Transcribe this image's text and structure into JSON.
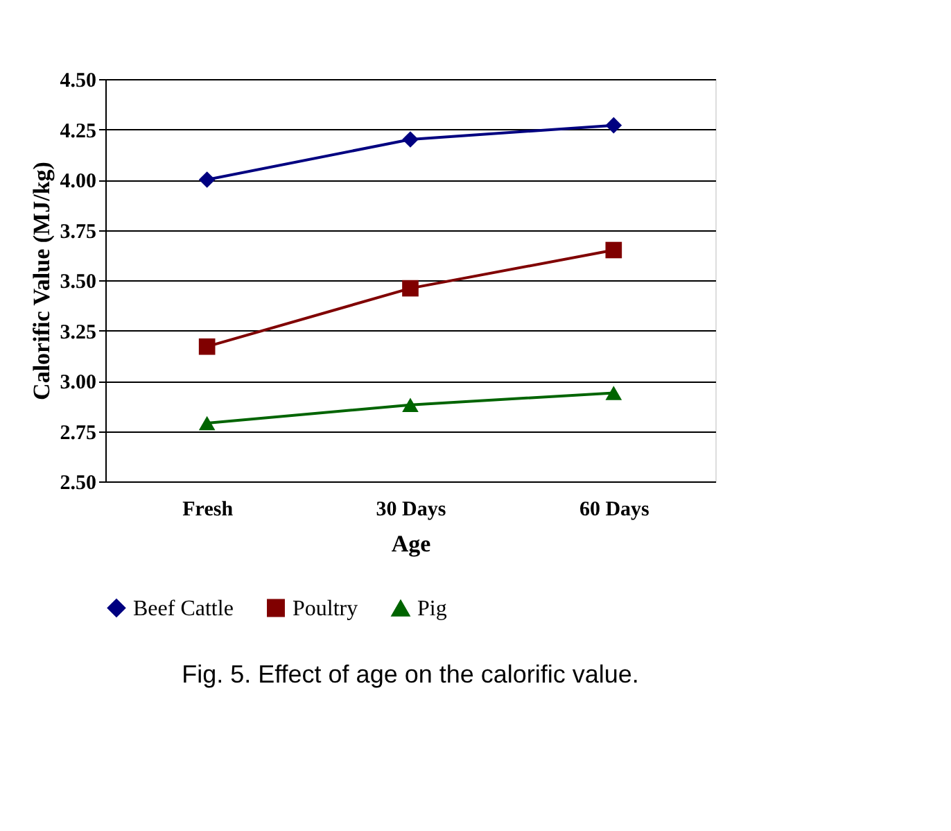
{
  "chart_data": {
    "type": "line",
    "xlabel": "Age",
    "ylabel": "Calorific Value (MJ/kg)",
    "categories": [
      "Fresh",
      "30 Days",
      "60 Days"
    ],
    "series": [
      {
        "name": "Beef Cattle",
        "color": "#000080",
        "marker": "diamond",
        "values": [
          4.0,
          4.2,
          4.27
        ]
      },
      {
        "name": "Poultry",
        "color": "#800000",
        "marker": "square",
        "values": [
          3.17,
          3.46,
          3.65
        ]
      },
      {
        "name": "Pig",
        "color": "#006400",
        "marker": "triangle",
        "values": [
          2.79,
          2.88,
          2.94
        ]
      }
    ],
    "ylim": [
      2.5,
      4.5
    ],
    "yticks": [
      {
        "value": 2.5,
        "label": "2.50"
      },
      {
        "value": 2.75,
        "label": "2.75"
      },
      {
        "value": 3.0,
        "label": "3.00"
      },
      {
        "value": 3.25,
        "label": "3.25"
      },
      {
        "value": 3.5,
        "label": "3.50"
      },
      {
        "value": 3.75,
        "label": "3.75"
      },
      {
        "value": 4.0,
        "label": "4.00"
      },
      {
        "value": 4.25,
        "label": "4.25"
      },
      {
        "value": 4.5,
        "label": "4.50"
      }
    ],
    "grid": "y",
    "legend": "bottom",
    "line_style": "solid",
    "annotations": [
      "Fig. 5. Effect of age on the calorific value."
    ]
  }
}
